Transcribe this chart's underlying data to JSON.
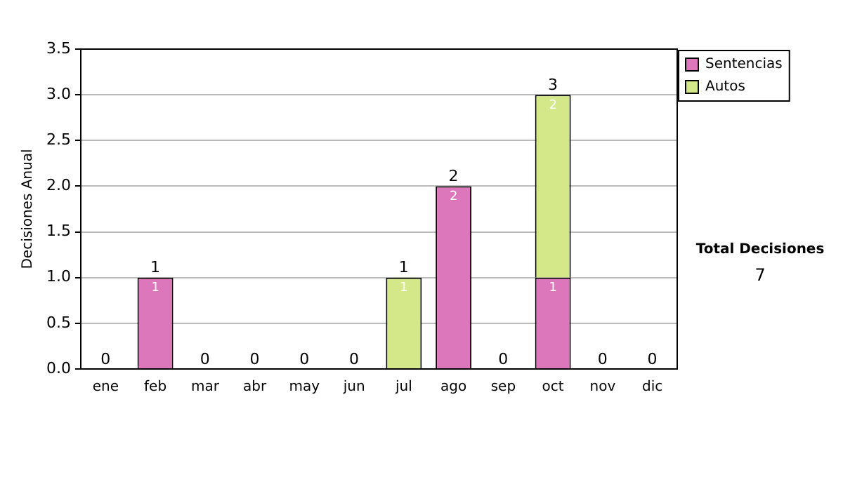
{
  "chart_data": {
    "type": "bar",
    "stacked": true,
    "ylabel": "Decisiones Anual",
    "categories": [
      "ene",
      "feb",
      "mar",
      "abr",
      "may",
      "jun",
      "jul",
      "ago",
      "sep",
      "oct",
      "nov",
      "dic"
    ],
    "series": [
      {
        "name": "Sentencias",
        "color": "#dd77bb",
        "values": [
          0,
          1,
          0,
          0,
          0,
          0,
          0,
          2,
          0,
          1,
          0,
          0
        ],
        "value_labels": [
          null,
          "1",
          null,
          null,
          null,
          null,
          null,
          "2",
          null,
          "1",
          null,
          null
        ]
      },
      {
        "name": "Autos",
        "color": "#d4e88a",
        "values": [
          0,
          0,
          0,
          0,
          0,
          0,
          1,
          0,
          0,
          2,
          0,
          0
        ],
        "value_labels": [
          null,
          null,
          null,
          null,
          null,
          null,
          "1",
          null,
          null,
          "2",
          null,
          null
        ]
      }
    ],
    "totals": [
      "0",
      "1",
      "0",
      "0",
      "0",
      "0",
      "1",
      "2",
      "0",
      "3",
      "0",
      "0"
    ],
    "ylim": [
      0,
      3.5
    ],
    "yticks": [
      {
        "value": 0,
        "label": "0.0"
      },
      {
        "value": 0.5,
        "label": "0.5"
      },
      {
        "value": 1,
        "label": "1.0"
      },
      {
        "value": 1.5,
        "label": "1.5"
      },
      {
        "value": 2,
        "label": "2.0"
      },
      {
        "value": 2.5,
        "label": "2.5"
      },
      {
        "value": 3,
        "label": "3.0"
      },
      {
        "value": 3.5,
        "label": "3.5"
      }
    ],
    "grid": "y",
    "legend": "right",
    "annotations": [
      "Total Decisiones",
      "7"
    ]
  }
}
